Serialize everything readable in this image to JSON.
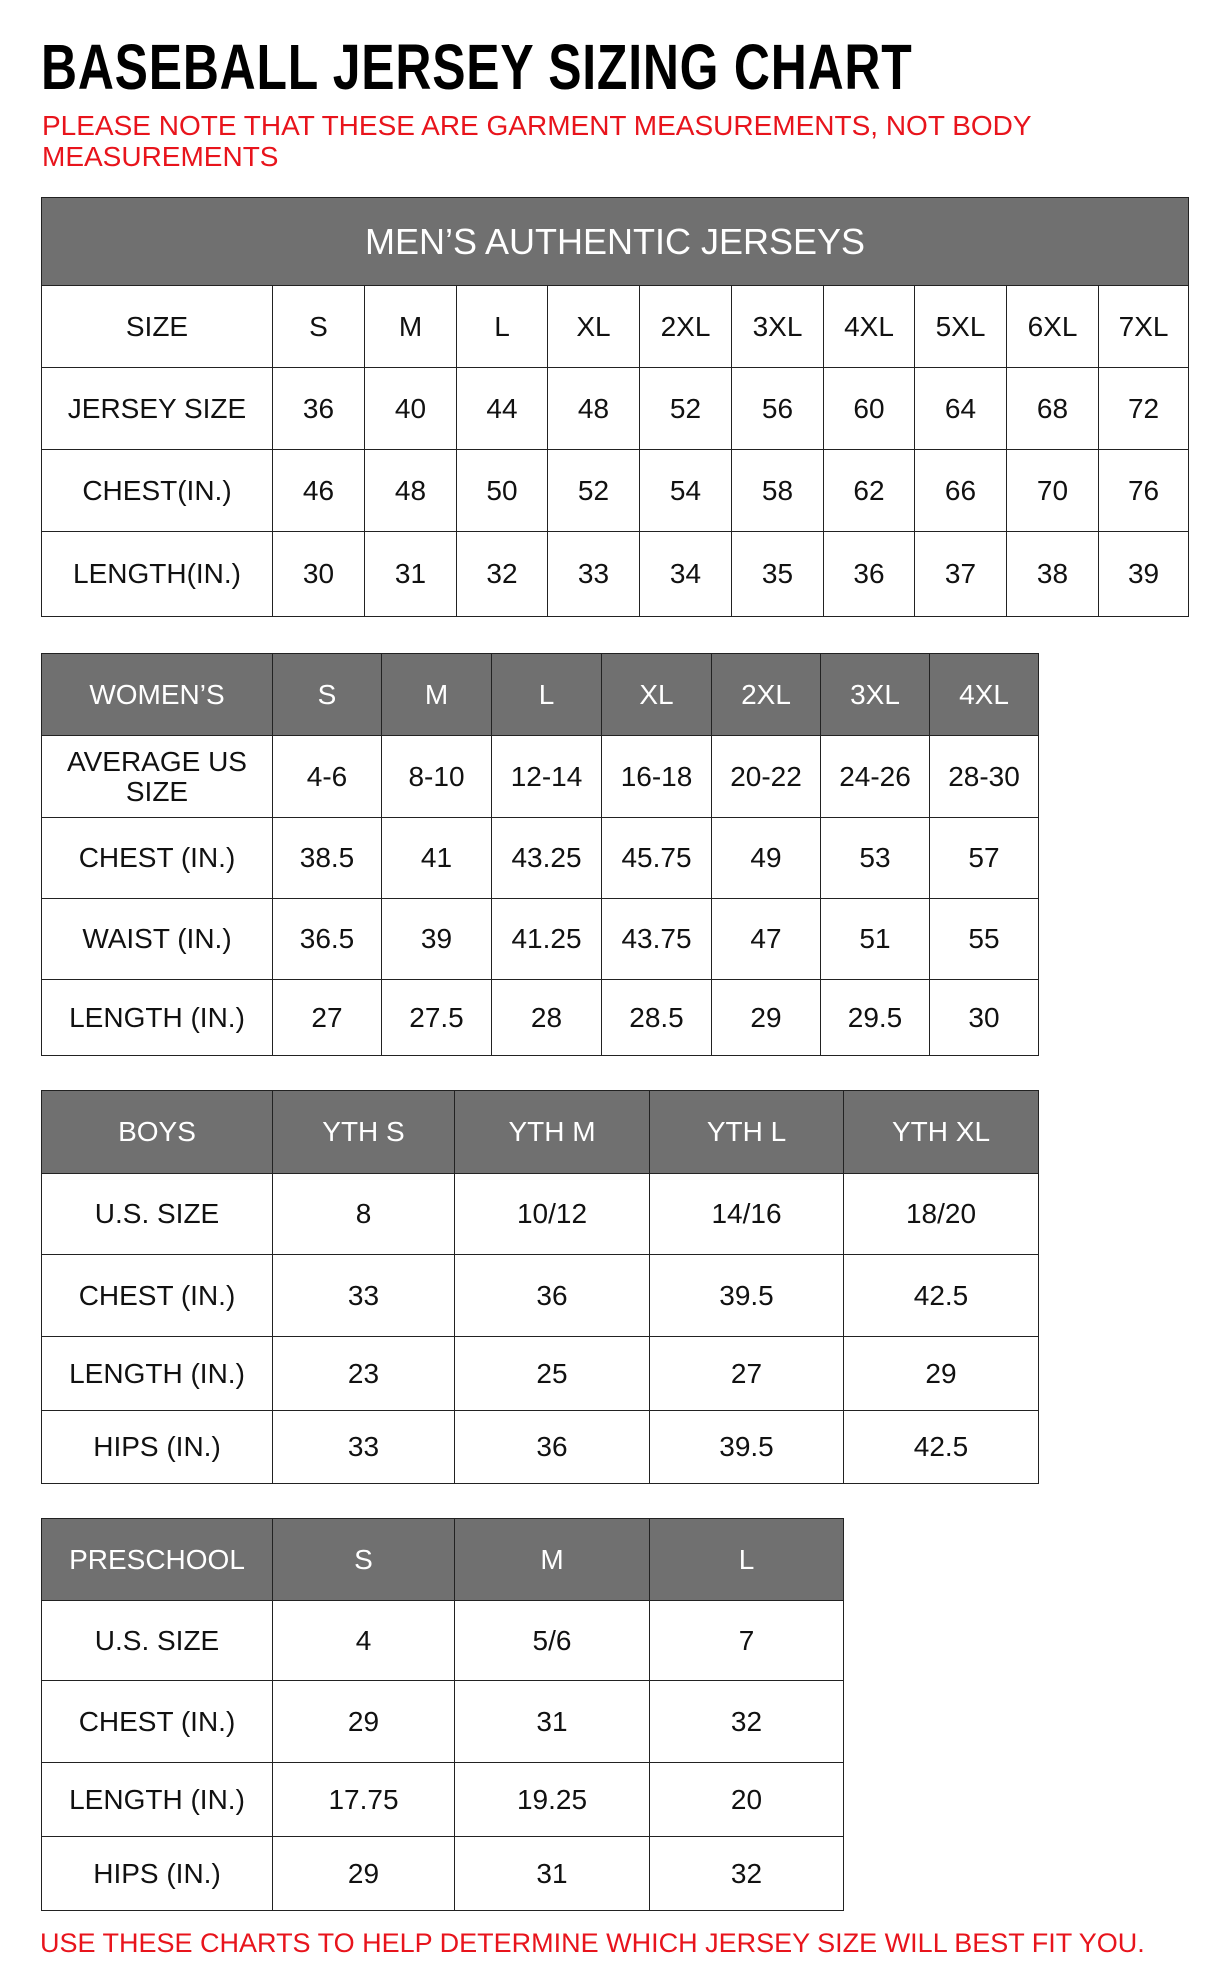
{
  "title": "BASEBALL JERSEY SIZING CHART",
  "note": "PLEASE NOTE THAT THESE ARE GARMENT MEASUREMENTS, NOT BODY MEASUREMENTS",
  "footer": "USE THESE CHARTS TO HELP DETERMINE WHICH JERSEY SIZE WILL BEST FIT YOU.",
  "colors": {
    "header_bg": "#707070",
    "note_red": "#e8141c"
  },
  "mens": {
    "banner": "MEN’S AUTHENTIC JERSEYS",
    "rows": [
      [
        "SIZE",
        "S",
        "M",
        "L",
        "XL",
        "2XL",
        "3XL",
        "4XL",
        "5XL",
        "6XL",
        "7XL"
      ],
      [
        "JERSEY SIZE",
        "36",
        "40",
        "44",
        "48",
        "52",
        "56",
        "60",
        "64",
        "68",
        "72"
      ],
      [
        "CHEST(IN.)",
        "46",
        "48",
        "50",
        "52",
        "54",
        "58",
        "62",
        "66",
        "70",
        "76"
      ],
      [
        "LENGTH(IN.)",
        "30",
        "31",
        "32",
        "33",
        "34",
        "35",
        "36",
        "37",
        "38",
        "39"
      ]
    ]
  },
  "womens": {
    "header": [
      "WOMEN’S",
      "S",
      "M",
      "L",
      "XL",
      "2XL",
      "3XL",
      "4XL"
    ],
    "rows": [
      [
        "AVERAGE US SIZE",
        "4-6",
        "8-10",
        "12-14",
        "16-18",
        "20-22",
        "24-26",
        "28-30"
      ],
      [
        "CHEST (IN.)",
        "38.5",
        "41",
        "43.25",
        "45.75",
        "49",
        "53",
        "57"
      ],
      [
        "WAIST (IN.)",
        "36.5",
        "39",
        "41.25",
        "43.75",
        "47",
        "51",
        "55"
      ],
      [
        "LENGTH (IN.)",
        "27",
        "27.5",
        "28",
        "28.5",
        "29",
        "29.5",
        "30"
      ]
    ]
  },
  "boys": {
    "header": [
      "BOYS",
      "YTH S",
      "YTH M",
      "YTH L",
      "YTH XL"
    ],
    "rows": [
      [
        "U.S. SIZE",
        "8",
        "10/12",
        "14/16",
        "18/20"
      ],
      [
        "CHEST (IN.)",
        "33",
        "36",
        "39.5",
        "42.5"
      ],
      [
        "LENGTH (IN.)",
        "23",
        "25",
        "27",
        "29"
      ],
      [
        "HIPS (IN.)",
        "33",
        "36",
        "39.5",
        "42.5"
      ]
    ]
  },
  "preschool": {
    "header": [
      "PRESCHOOL",
      "S",
      "M",
      "L"
    ],
    "rows": [
      [
        "U.S. SIZE",
        "4",
        "5/6",
        "7"
      ],
      [
        "CHEST (IN.)",
        "29",
        "31",
        "32"
      ],
      [
        "LENGTH (IN.)",
        "17.75",
        "19.25",
        "20"
      ],
      [
        "HIPS (IN.)",
        "29",
        "31",
        "32"
      ]
    ]
  }
}
